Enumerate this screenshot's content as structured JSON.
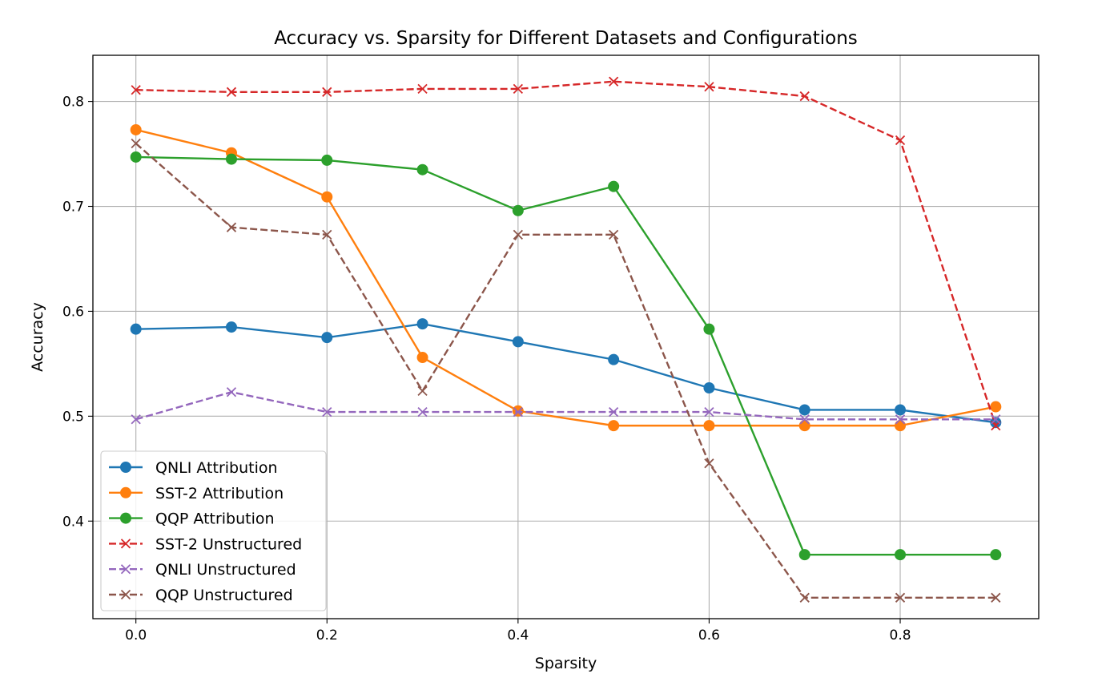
{
  "chart_data": {
    "type": "line",
    "title": "Accuracy vs. Sparsity for Different Datasets and Configurations",
    "xlabel": "Sparsity",
    "ylabel": "Accuracy",
    "x": [
      0.0,
      0.1,
      0.2,
      0.3,
      0.4,
      0.5,
      0.6,
      0.7,
      0.8,
      0.9
    ],
    "xlim": [
      -0.045,
      0.945
    ],
    "ylim": [
      0.307,
      0.844
    ],
    "xticks": [
      "0.0",
      "0.2",
      "0.4",
      "0.6",
      "0.8"
    ],
    "xtick_values": [
      0.0,
      0.2,
      0.4,
      0.6,
      0.8
    ],
    "yticks": [
      "0.4",
      "0.5",
      "0.6",
      "0.7",
      "0.8"
    ],
    "ytick_values": [
      0.4,
      0.5,
      0.6,
      0.7,
      0.8
    ],
    "grid": true,
    "legend_position": "lower-left",
    "series": [
      {
        "name": "QNLI Attribution",
        "color": "#1f77b4",
        "style": "solid",
        "marker": "circle",
        "values": [
          0.583,
          0.585,
          0.575,
          0.588,
          0.571,
          0.554,
          0.527,
          0.506,
          0.506,
          0.494
        ]
      },
      {
        "name": "SST-2 Attribution",
        "color": "#ff7f0e",
        "style": "solid",
        "marker": "circle",
        "values": [
          0.773,
          0.751,
          0.709,
          0.556,
          0.505,
          0.491,
          0.491,
          0.491,
          0.491,
          0.509
        ]
      },
      {
        "name": "QQP Attribution",
        "color": "#2ca02c",
        "style": "solid",
        "marker": "circle",
        "values": [
          0.747,
          0.745,
          0.744,
          0.735,
          0.696,
          0.719,
          0.583,
          0.368,
          0.368,
          0.368
        ]
      },
      {
        "name": "SST-2 Unstructured",
        "color": "#d62728",
        "style": "dashed",
        "marker": "x",
        "values": [
          0.811,
          0.809,
          0.809,
          0.812,
          0.812,
          0.819,
          0.814,
          0.805,
          0.763,
          0.491
        ]
      },
      {
        "name": "QNLI Unstructured",
        "color": "#9467bd",
        "style": "dashed",
        "marker": "x",
        "values": [
          0.497,
          0.523,
          0.504,
          0.504,
          0.504,
          0.504,
          0.504,
          0.497,
          0.497,
          0.497
        ]
      },
      {
        "name": "QQP Unstructured",
        "color": "#8c564b",
        "style": "dashed",
        "marker": "x",
        "values": [
          0.76,
          0.68,
          0.673,
          0.524,
          0.673,
          0.673,
          0.455,
          0.327,
          0.327,
          0.327
        ]
      }
    ]
  }
}
